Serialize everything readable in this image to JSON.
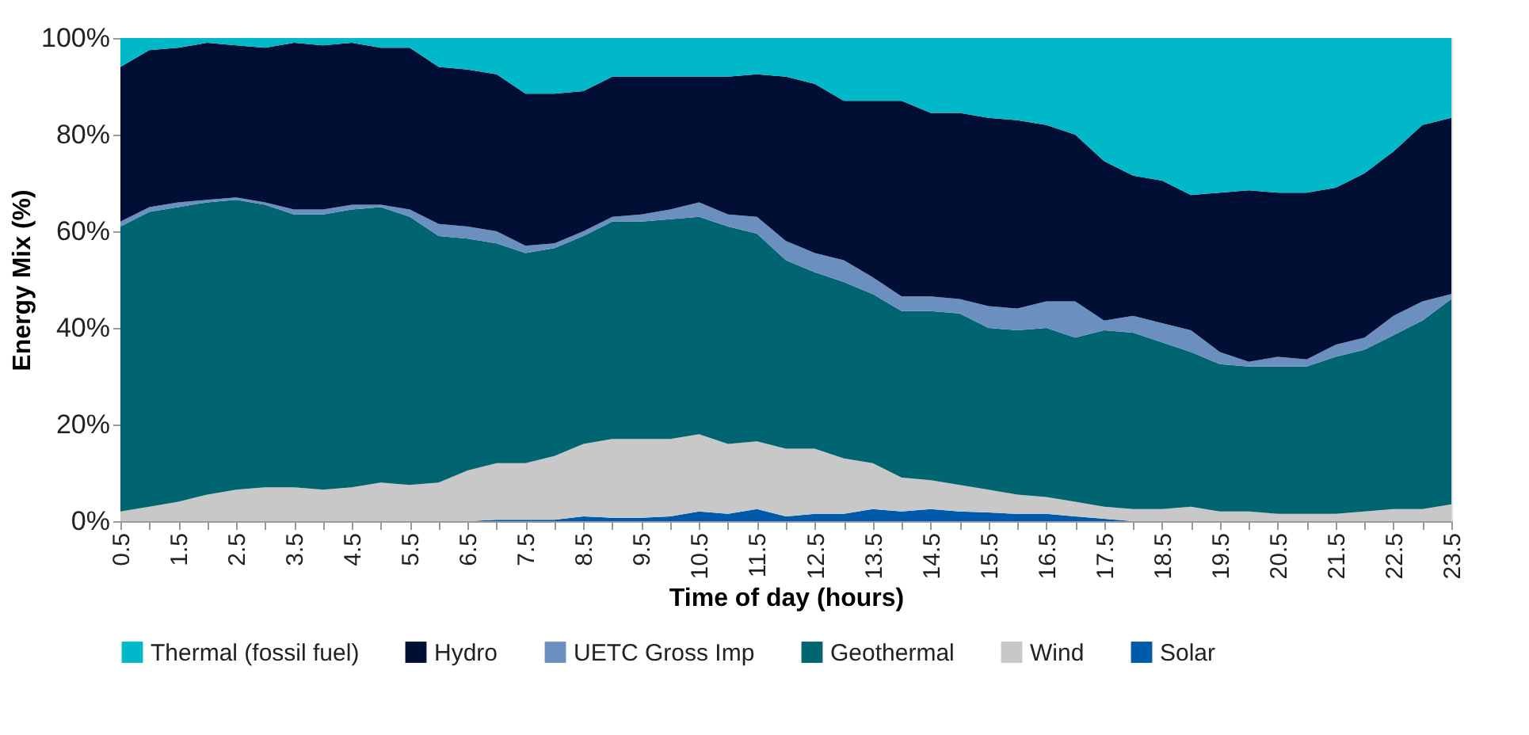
{
  "chart_data": {
    "type": "area",
    "stacked": true,
    "xlabel": "Time of day (hours)",
    "ylabel": "Energy Mix (%)",
    "x": [
      0.5,
      1,
      1.5,
      2,
      2.5,
      3,
      3.5,
      4,
      4.5,
      5,
      5.5,
      6,
      6.5,
      7,
      7.5,
      8,
      8.5,
      9,
      9.5,
      10,
      10.5,
      11,
      11.5,
      12,
      12.5,
      13,
      13.5,
      14,
      14.5,
      15,
      15.5,
      16,
      16.5,
      17,
      17.5,
      18,
      18.5,
      19,
      19.5,
      20,
      20.5,
      21,
      21.5,
      22,
      22.5,
      23,
      23.5
    ],
    "xlim": [
      0.5,
      23.5
    ],
    "xticks": [
      0.5,
      {
        "value": 1,
        "label": null
      },
      1.5,
      {
        "value": 2,
        "label": null
      },
      2.5,
      {
        "value": 3,
        "label": null
      },
      3.5,
      {
        "value": 4,
        "label": null
      },
      4.5,
      {
        "value": 5,
        "label": null
      },
      5.5,
      {
        "value": 6,
        "label": null
      },
      6.5,
      {
        "value": 7,
        "label": null
      },
      7.5,
      {
        "value": 8,
        "label": null
      },
      8.5,
      {
        "value": 9,
        "label": null
      },
      9.5,
      {
        "value": 10,
        "label": null
      },
      10.5,
      {
        "value": 11,
        "label": null
      },
      11.5,
      {
        "value": 12,
        "label": null
      },
      12.5,
      {
        "value": 13,
        "label": null
      },
      13.5,
      {
        "value": 14,
        "label": null
      },
      14.5,
      {
        "value": 15,
        "label": null
      },
      15.5,
      {
        "value": 16,
        "label": null
      },
      16.5,
      {
        "value": 17,
        "label": null
      },
      17.5,
      {
        "value": 18,
        "label": null
      },
      18.5,
      {
        "value": 19,
        "label": null
      },
      19.5,
      {
        "value": 20,
        "label": null
      },
      20.5,
      {
        "value": 21,
        "label": null
      },
      21.5,
      {
        "value": 22,
        "label": null
      },
      22.5,
      {
        "value": 23,
        "label": null
      },
      23.5
    ],
    "ylim": [
      0,
      100
    ],
    "yticks": [
      {
        "value": 0,
        "label": "0%"
      },
      {
        "value": 20,
        "label": "20%"
      },
      {
        "value": 40,
        "label": "40%"
      },
      {
        "value": 60,
        "label": "60%"
      },
      {
        "value": 80,
        "label": "80%"
      },
      {
        "value": 100,
        "label": "100%"
      }
    ],
    "grid": false,
    "legend": "bottom",
    "series": [
      {
        "name": "Solar",
        "color": "#005aab",
        "values": [
          0,
          0,
          0,
          0,
          0,
          0,
          0,
          0,
          0,
          0,
          0,
          0,
          0,
          0.3,
          0.3,
          0.3,
          1,
          0.7,
          0.7,
          1,
          2,
          1.5,
          2.5,
          1,
          1.5,
          1.5,
          2.5,
          2,
          2.5,
          2,
          1.8,
          1.5,
          1.5,
          1,
          0.5,
          0,
          0,
          0,
          0,
          0,
          0,
          0,
          0,
          0,
          0,
          0,
          0
        ]
      },
      {
        "name": "Wind",
        "color": "#c8c8c8",
        "values": [
          2,
          3,
          4,
          5.5,
          6.5,
          7,
          7,
          6.5,
          7,
          8,
          7.5,
          8,
          10.5,
          11.7,
          11.7,
          13.2,
          15,
          16.3,
          16.3,
          16,
          16,
          14.5,
          14,
          14,
          13.5,
          11.5,
          9.5,
          7,
          6,
          5.5,
          4.7,
          4,
          3.5,
          3,
          2.5,
          2.5,
          2.5,
          3,
          2,
          2,
          1.5,
          1.5,
          1.5,
          2,
          2.5,
          2.5,
          3.5
        ]
      },
      {
        "name": "Geothermal",
        "color": "#006570",
        "values": [
          59,
          61,
          61,
          60.5,
          60,
          58.5,
          56.5,
          57,
          57.5,
          57,
          55.5,
          51,
          48,
          45.5,
          43.5,
          43,
          43,
          45,
          45,
          45.5,
          45,
          45,
          43,
          39,
          36.5,
          36.5,
          35,
          34.5,
          35,
          35.5,
          33.5,
          34,
          35,
          34,
          36.5,
          36.5,
          34.5,
          32,
          30.5,
          30,
          30.5,
          30.5,
          32.5,
          33.5,
          36,
          39,
          42.5
        ]
      },
      {
        "name": "UETC Gross Imp",
        "color": "#6b90c0",
        "values": [
          1,
          1,
          1,
          0.5,
          0.5,
          0.5,
          1,
          1,
          1,
          0.5,
          1.5,
          2.5,
          2.5,
          2.5,
          1.5,
          1,
          1,
          1,
          1.5,
          2,
          3,
          2.5,
          3.5,
          4,
          4,
          4.5,
          3.5,
          3,
          3,
          3,
          4.5,
          4.5,
          5.5,
          7.5,
          2,
          3.5,
          4,
          4.5,
          2.5,
          1,
          2,
          1.5,
          2.5,
          2.5,
          4,
          4,
          1
        ]
      },
      {
        "name": "Hydro",
        "color": "#000f33",
        "values": [
          32,
          32.5,
          32,
          32.5,
          31.5,
          32,
          34.5,
          34,
          33.5,
          32.5,
          33.5,
          32.5,
          32.5,
          32.5,
          31.5,
          31,
          29,
          29,
          28.5,
          27.5,
          26,
          28.5,
          29.5,
          34,
          35,
          33,
          36.5,
          40.5,
          38,
          38.5,
          39,
          39,
          36.5,
          34.5,
          33,
          29,
          29.5,
          28,
          33,
          35.5,
          34,
          34.5,
          32.5,
          34,
          34,
          36.5,
          36.5
        ]
      },
      {
        "name": "Thermal (fossil fuel)",
        "color": "#00b8c8",
        "values": [
          6,
          2.5,
          2,
          1,
          1.5,
          2,
          1,
          1.5,
          1,
          2,
          2,
          6,
          6.5,
          7.5,
          11.5,
          11.5,
          11,
          8,
          8,
          8,
          8,
          8,
          7.5,
          8,
          9.5,
          13,
          13,
          13,
          15.5,
          15.5,
          16.5,
          17,
          18,
          20,
          25.5,
          28.5,
          29.5,
          32.5,
          32,
          31.5,
          32,
          32,
          31,
          28,
          23.5,
          18,
          16.5
        ]
      }
    ]
  }
}
